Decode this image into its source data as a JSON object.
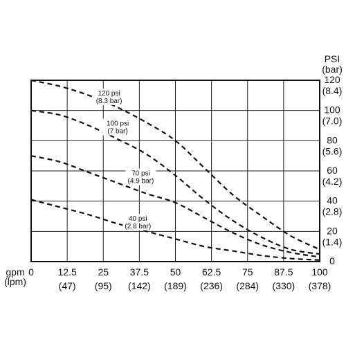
{
  "chart_data": {
    "type": "line",
    "x_axis": {
      "label": "gpm",
      "sublabel": "(lpm)",
      "range": [
        0,
        100
      ],
      "ticks": [
        0,
        12.5,
        25,
        37.5,
        50,
        62.5,
        75,
        87.5,
        100
      ],
      "tick_labels": [
        "0",
        "12.5",
        "25",
        "37.5",
        "50",
        "62.5",
        "75",
        "87.5",
        "100"
      ],
      "sub_tick_labels": [
        "",
        "(47)",
        "(95)",
        "(142)",
        "(189)",
        "(236)",
        "(284)",
        "(330)",
        "(378)"
      ]
    },
    "y_axis": {
      "label": "PSI",
      "sublabel": "(bar)",
      "range": [
        0,
        120
      ],
      "ticks": [
        0,
        20,
        40,
        60,
        80,
        100,
        120
      ],
      "tick_labels": [
        "0",
        "20",
        "40",
        "60",
        "80",
        "100",
        "120"
      ],
      "sub_tick_labels": [
        "",
        "(1.4)",
        "(2.8)",
        "(4.2)",
        "(5.6)",
        "(7.0)",
        "(8.4)"
      ],
      "position": "right"
    },
    "grid": true,
    "series": [
      {
        "name": "120 psi",
        "sub": "(8.3 bar)",
        "x": [
          0,
          10,
          20,
          30,
          40,
          50,
          60,
          70,
          80,
          90,
          100
        ],
        "y": [
          120,
          116,
          110,
          102,
          92,
          80,
          62,
          44,
          30,
          17,
          8
        ],
        "label_pos": [
          27,
          110
        ]
      },
      {
        "name": "100 psi",
        "sub": "(7 bar)",
        "x": [
          0,
          10,
          20,
          30,
          40,
          50,
          60,
          70,
          80,
          90,
          100
        ],
        "y": [
          100,
          97,
          90,
          81,
          71,
          57,
          41,
          27,
          16,
          8,
          5
        ],
        "label_pos": [
          30,
          90
        ]
      },
      {
        "name": "70 psi",
        "sub": "(4.9 bar)",
        "x": [
          0,
          10,
          20,
          30,
          40,
          50,
          60,
          70,
          80,
          90,
          100
        ],
        "y": [
          70,
          66,
          59,
          52,
          45,
          39,
          29,
          19,
          11,
          6,
          3
        ],
        "label_pos": [
          38,
          57
        ]
      },
      {
        "name": "40 psi",
        "sub": "(2.8 bar)",
        "x": [
          0,
          10,
          20,
          30,
          40,
          50,
          60,
          70,
          80,
          90,
          100
        ],
        "y": [
          41,
          36,
          31,
          25,
          20,
          15,
          10,
          7,
          4,
          2,
          1
        ],
        "label_pos": [
          37,
          27
        ]
      }
    ]
  }
}
